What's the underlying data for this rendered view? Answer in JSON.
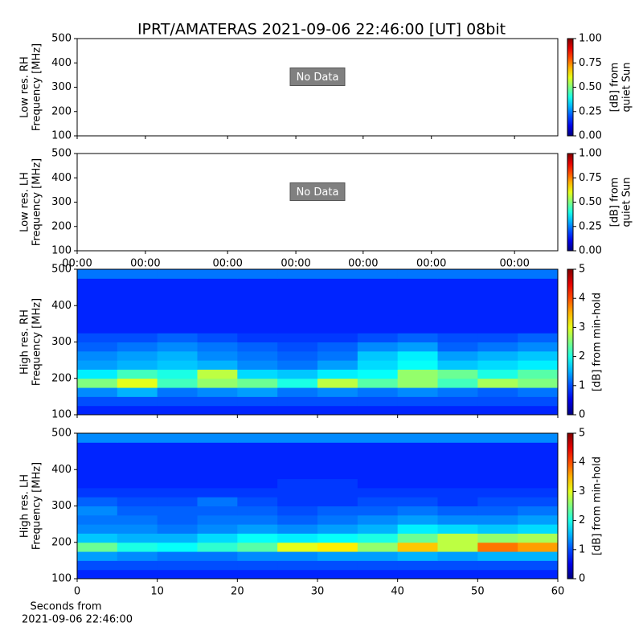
{
  "title": "IPRT/AMATERAS 2021-09-06 22:46:00 [UT]   08bit",
  "xlabel": [
    "Seconds from",
    "2021-09-06 22:46:00"
  ],
  "chart_data": [
    {
      "type": "empty",
      "ylabel": [
        "Low res. RH",
        "Frequency [MHz]"
      ],
      "annotation": "No Data",
      "xlim": [
        0,
        1
      ],
      "xtick_labels": false,
      "xticks": [
        {
          "value": 0,
          "label": "00:00"
        },
        {
          "value": 0.142,
          "label": "00:00"
        },
        {
          "value": 0.313,
          "label": "00:00"
        },
        {
          "value": 0.455,
          "label": "00:00"
        },
        {
          "value": 0.595,
          "label": "00:00"
        },
        {
          "value": 0.737,
          "label": "00:00"
        },
        {
          "value": 0.91,
          "label": "00:00"
        }
      ],
      "ylim": [
        100,
        500
      ],
      "yticks": [
        100,
        200,
        300,
        400,
        500
      ],
      "colorbar": {
        "label": [
          "[dB] from",
          "quiet Sun"
        ],
        "lim": [
          0,
          1
        ],
        "ticks": [
          {
            "value": 0,
            "label": "0.00"
          },
          {
            "value": 0.25,
            "label": "0.25"
          },
          {
            "value": 0.5,
            "label": "0.50"
          },
          {
            "value": 0.75,
            "label": "0.75"
          },
          {
            "value": 1,
            "label": "1.00"
          }
        ],
        "cmap": "jet"
      }
    },
    {
      "type": "empty",
      "ylabel": [
        "Low res. LH",
        "Frequency [MHz]"
      ],
      "annotation": "No Data",
      "xlim": [
        0,
        1
      ],
      "xtick_labels": true,
      "xticks": [
        {
          "value": 0,
          "label": "00:00"
        },
        {
          "value": 0.142,
          "label": "00:00"
        },
        {
          "value": 0.313,
          "label": "00:00"
        },
        {
          "value": 0.455,
          "label": "00:00"
        },
        {
          "value": 0.595,
          "label": "00:00"
        },
        {
          "value": 0.737,
          "label": "00:00"
        },
        {
          "value": 0.91,
          "label": "00:00"
        }
      ],
      "ylim": [
        100,
        500
      ],
      "yticks": [
        100,
        200,
        300,
        400,
        500
      ],
      "colorbar": {
        "label": [
          "[dB] from",
          "quiet Sun"
        ],
        "lim": [
          0,
          1
        ],
        "ticks": [
          {
            "value": 0,
            "label": "0.00"
          },
          {
            "value": 0.25,
            "label": "0.25"
          },
          {
            "value": 0.5,
            "label": "0.50"
          },
          {
            "value": 0.75,
            "label": "0.75"
          },
          {
            "value": 1,
            "label": "1.00"
          }
        ],
        "cmap": "jet"
      }
    },
    {
      "type": "heatmap",
      "ylabel": [
        "High res. RH",
        "Frequency [MHz]"
      ],
      "xlim": [
        0,
        60
      ],
      "xticks": [
        0,
        10,
        20,
        30,
        40,
        50,
        60
      ],
      "xtick_labels": false,
      "ylim": [
        100,
        500
      ],
      "yticks": [
        100,
        200,
        300,
        400,
        500
      ],
      "xbins": [
        0,
        5,
        10,
        15,
        20,
        25,
        30,
        35,
        40,
        45,
        50,
        55,
        60
      ],
      "ybins": [
        100,
        125,
        150,
        175,
        200,
        225,
        250,
        275,
        300,
        325,
        350,
        375,
        400,
        425,
        450,
        475,
        500
      ],
      "z": [
        [
          0.8,
          0.8,
          0.8,
          0.8,
          0.8,
          0.8,
          0.8,
          0.8,
          0.8,
          0.8,
          0.8,
          0.8
        ],
        [
          1.0,
          1.0,
          1.0,
          1.0,
          1.0,
          1.0,
          1.0,
          1.0,
          1.0,
          1.0,
          1.0,
          1.0
        ],
        [
          1.3,
          1.5,
          1.2,
          1.3,
          1.4,
          1.2,
          1.3,
          1.2,
          1.3,
          1.2,
          1.1,
          1.2
        ],
        [
          2.5,
          3.0,
          2.2,
          2.6,
          2.4,
          2.0,
          2.8,
          2.3,
          2.6,
          2.2,
          2.7,
          2.5
        ],
        [
          1.8,
          2.2,
          2.0,
          2.8,
          1.7,
          1.6,
          1.8,
          1.9,
          2.6,
          2.4,
          2.0,
          2.3
        ],
        [
          1.4,
          1.5,
          1.6,
          1.5,
          1.3,
          1.2,
          1.4,
          1.7,
          1.9,
          1.6,
          1.7,
          1.8
        ],
        [
          1.3,
          1.4,
          1.5,
          1.3,
          1.2,
          1.1,
          1.2,
          1.6,
          1.8,
          1.4,
          1.5,
          1.6
        ],
        [
          1.1,
          1.2,
          1.3,
          1.2,
          1.1,
          1.0,
          1.1,
          1.3,
          1.4,
          1.1,
          1.2,
          1.3
        ],
        [
          1.0,
          1.0,
          1.1,
          1.0,
          0.9,
          0.9,
          0.9,
          1.0,
          1.1,
          1.0,
          1.0,
          1.1
        ],
        [
          0.8,
          0.8,
          0.8,
          0.8,
          0.8,
          0.8,
          0.8,
          0.8,
          0.8,
          0.8,
          0.8,
          0.8
        ],
        [
          0.8,
          0.8,
          0.8,
          0.8,
          0.8,
          0.8,
          0.8,
          0.8,
          0.8,
          0.8,
          0.8,
          0.8
        ],
        [
          0.8,
          0.8,
          0.8,
          0.8,
          0.8,
          0.8,
          0.8,
          0.8,
          0.8,
          0.8,
          0.8,
          0.8
        ],
        [
          0.8,
          0.8,
          0.8,
          0.8,
          0.8,
          0.8,
          0.8,
          0.8,
          0.8,
          0.8,
          0.8,
          0.8
        ],
        [
          0.8,
          0.8,
          0.8,
          0.8,
          0.8,
          0.8,
          0.8,
          0.8,
          0.8,
          0.8,
          0.8,
          0.8
        ],
        [
          0.8,
          0.8,
          0.8,
          0.8,
          0.8,
          0.8,
          0.8,
          0.8,
          0.8,
          0.8,
          0.8,
          0.8
        ],
        [
          1.2,
          1.2,
          1.2,
          1.2,
          1.2,
          1.2,
          1.2,
          1.2,
          1.2,
          1.2,
          1.2,
          1.2
        ]
      ],
      "colorbar": {
        "label": [
          "[dB] from min-hold"
        ],
        "lim": [
          0,
          5
        ],
        "ticks": [
          0,
          1,
          2,
          3,
          4,
          5
        ],
        "cmap": "jet"
      }
    },
    {
      "type": "heatmap",
      "ylabel": [
        "High res. LH",
        "Frequency [MHz]"
      ],
      "xlim": [
        0,
        60
      ],
      "xticks": [
        0,
        10,
        20,
        30,
        40,
        50,
        60
      ],
      "xtick_labels": true,
      "ylim": [
        100,
        500
      ],
      "yticks": [
        100,
        200,
        300,
        400,
        500
      ],
      "xbins": [
        0,
        5,
        10,
        15,
        20,
        25,
        30,
        35,
        40,
        45,
        50,
        55,
        60
      ],
      "ybins": [
        100,
        125,
        150,
        175,
        200,
        225,
        250,
        275,
        300,
        325,
        350,
        375,
        400,
        425,
        450,
        475,
        500
      ],
      "z": [
        [
          0.8,
          0.8,
          0.8,
          0.8,
          0.8,
          0.8,
          0.8,
          0.8,
          0.8,
          0.8,
          0.8,
          0.8
        ],
        [
          1.0,
          1.0,
          1.0,
          1.0,
          1.0,
          1.0,
          1.0,
          1.0,
          1.0,
          1.0,
          1.0,
          1.0
        ],
        [
          1.4,
          1.3,
          1.2,
          1.2,
          1.3,
          1.3,
          1.4,
          1.4,
          1.5,
          1.4,
          1.5,
          1.5
        ],
        [
          2.4,
          2.0,
          1.9,
          2.1,
          2.3,
          3.0,
          3.2,
          2.6,
          3.4,
          2.8,
          3.8,
          3.6
        ],
        [
          1.6,
          1.5,
          1.5,
          1.7,
          1.9,
          1.8,
          1.9,
          2.0,
          2.4,
          2.8,
          2.6,
          2.7
        ],
        [
          1.3,
          1.3,
          1.2,
          1.3,
          1.4,
          1.3,
          1.4,
          1.5,
          1.8,
          1.7,
          1.6,
          1.7
        ],
        [
          1.2,
          1.2,
          1.1,
          1.2,
          1.2,
          1.1,
          1.2,
          1.3,
          1.4,
          1.3,
          1.3,
          1.4
        ],
        [
          1.3,
          1.1,
          1.1,
          1.1,
          1.1,
          1.0,
          1.1,
          1.1,
          1.2,
          1.1,
          1.1,
          1.2
        ],
        [
          1.1,
          1.0,
          1.0,
          1.2,
          1.0,
          0.9,
          0.9,
          1.0,
          1.0,
          0.9,
          1.0,
          1.0
        ],
        [
          0.9,
          0.9,
          0.9,
          0.9,
          0.9,
          0.9,
          0.9,
          0.9,
          0.9,
          0.9,
          0.9,
          0.9
        ],
        [
          0.8,
          0.8,
          0.8,
          0.8,
          0.8,
          0.9,
          0.9,
          0.8,
          0.8,
          0.8,
          0.8,
          0.8
        ],
        [
          0.8,
          0.8,
          0.8,
          0.8,
          0.8,
          0.8,
          0.8,
          0.8,
          0.8,
          0.8,
          0.8,
          0.8
        ],
        [
          0.8,
          0.8,
          0.8,
          0.8,
          0.8,
          0.8,
          0.8,
          0.8,
          0.8,
          0.8,
          0.8,
          0.8
        ],
        [
          0.8,
          0.8,
          0.8,
          0.8,
          0.8,
          0.8,
          0.8,
          0.8,
          0.8,
          0.8,
          0.8,
          0.8
        ],
        [
          0.8,
          0.8,
          0.8,
          0.8,
          0.8,
          0.8,
          0.8,
          0.8,
          0.8,
          0.8,
          0.8,
          0.8
        ],
        [
          1.3,
          1.3,
          1.3,
          1.3,
          1.3,
          1.3,
          1.3,
          1.3,
          1.3,
          1.3,
          1.3,
          1.3
        ]
      ],
      "colorbar": {
        "label": [
          "[dB] from min-hold"
        ],
        "lim": [
          0,
          5
        ],
        "ticks": [
          0,
          1,
          2,
          3,
          4,
          5
        ],
        "cmap": "jet"
      }
    }
  ]
}
